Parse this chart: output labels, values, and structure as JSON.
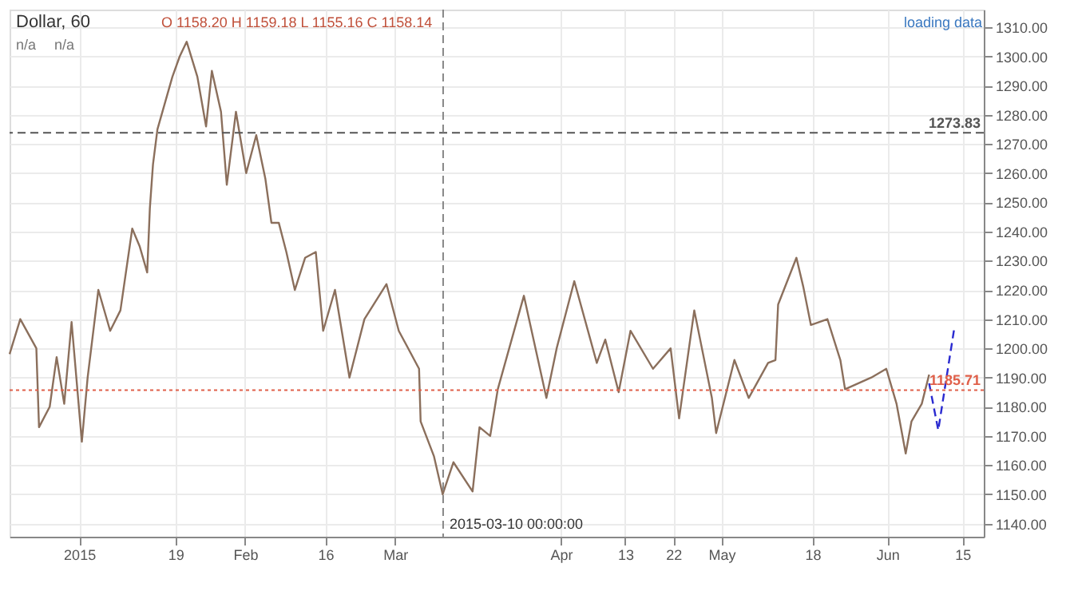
{
  "chart_data": {
    "type": "line",
    "title": "Dollar, 60",
    "annotations": [
      "O 1158.20 H 1159.18 L 1155.16 C 1158.14",
      "n/a",
      "n/a",
      "loading data"
    ],
    "series": [
      {
        "color": "#8b6f5c",
        "line_style": "solid",
        "x": [
          "2014-12-19",
          "2014-12-21",
          "2014-12-24",
          "2014-12-24T12:00",
          "2014-12-26T12:00",
          "2014-12-27T19:00",
          "2014-12-29T05:00",
          "2014-12-30T14:00",
          "2015-01-01T12:00",
          "2015-01-02T14:00",
          "2015-01-04T14:00",
          "2015-01-06T19:00",
          "2015-01-08T17:00",
          "2015-01-10T22:00",
          "2015-01-12T07:00",
          "2015-01-13T17:00",
          "2015-01-14T05:00",
          "2015-01-14T19:00",
          "2015-01-15T15:00",
          "2015-01-18T10:00",
          "2015-01-19T19:00",
          "2015-01-21T02:00",
          "2015-01-23T02:00",
          "2015-01-24T17:00",
          "2015-01-25T19:00",
          "2015-01-27T12:00",
          "2015-01-28T14:00",
          "2015-01-30T07:00",
          "2015-02-01T05:00",
          "2015-02-03T02:00",
          "2015-02-04T19:00",
          "2015-02-05T22:00",
          "2015-02-07T07:00",
          "2015-02-08T17:00",
          "2015-02-10T07:00",
          "2015-02-12T05:00",
          "2015-02-14T05:00",
          "2015-02-15T14:00",
          "2015-02-17T19:00",
          "2015-02-20T12:00",
          "2015-02-23T07:00",
          "2015-02-27T10:00",
          "2015-03-01T17:00",
          "2015-03-05T12:00",
          "2015-03-05T19:00",
          "2015-03-08T07:00",
          "2015-03-09T22:00",
          "2015-03-11T22:00",
          "2015-03-15T12:00",
          "2015-03-16T19:00",
          "2015-03-18T19:00",
          "2015-03-20T05:00",
          "2015-03-25T02:00",
          "2015-03-29T07:00",
          "2015-03-31T05:00",
          "2015-04-03T12:00",
          "2015-04-07T17:00",
          "2015-04-09T07:00",
          "2015-04-11T19:00",
          "2015-04-14T00:00",
          "2015-04-18T05:00",
          "2015-04-21T12:00",
          "2015-04-23T02:00",
          "2015-04-25T22:00",
          "2015-04-29T05:00",
          "2015-04-30T00:00",
          "2015-05-03T10:00",
          "2015-05-06T02:00",
          "2015-05-09T17:00",
          "2015-05-11T02:00",
          "2015-05-11T14:00",
          "2015-05-15T00:00",
          "2015-05-16T07:00",
          "2015-05-17T17:00",
          "2015-05-20T19:00",
          "2015-05-23T05:00",
          "2015-05-24T02:00",
          "2015-05-29T00:00",
          "2015-05-31T19:00",
          "2015-06-02T17:00",
          "2015-06-04T10:00",
          "2015-06-05T12:00",
          "2015-06-07T10:00",
          "2015-06-08T19:00"
        ],
        "values": [
          1198,
          1210,
          1200,
          1173,
          1180,
          1197,
          1181,
          1209,
          1168,
          1190,
          1220,
          1206,
          1213,
          1241,
          1235,
          1226,
          1248,
          1263,
          1275,
          1293,
          1300,
          1305,
          1293,
          1276,
          1295,
          1281,
          1256,
          1281,
          1260,
          1273,
          1258,
          1243,
          1243,
          1233,
          1220,
          1231,
          1233,
          1206,
          1220,
          1190,
          1210,
          1222,
          1206,
          1193,
          1175,
          1163,
          1150,
          1161,
          1151,
          1173,
          1170,
          1186,
          1218,
          1183,
          1200,
          1223,
          1195,
          1203,
          1185,
          1206,
          1193,
          1200,
          1176,
          1213,
          1183,
          1171,
          1196,
          1183,
          1195,
          1196,
          1215,
          1231,
          1221,
          1208,
          1210,
          1196,
          1186,
          1190,
          1193,
          1181,
          1164,
          1175,
          1181,
          1191
        ]
      },
      {
        "color": "#2a2ad0",
        "line_style": "dashed",
        "x": [
          "2015-06-08T19:00",
          "2015-06-10T12:00",
          "2015-06-13T12:00"
        ],
        "values": [
          1188,
          1172,
          1207
        ]
      }
    ],
    "xlim": [
      "2014-12-19",
      "2015-06-19"
    ],
    "xticks": [
      {
        "value": "2015-01-01",
        "label": "2015"
      },
      {
        "value": "2015-01-19",
        "label": "19"
      },
      {
        "value": "2015-02-01",
        "label": "Feb"
      },
      {
        "value": "2015-02-16",
        "label": "16"
      },
      {
        "value": "2015-03-01",
        "label": "Mar"
      },
      {
        "value": "2015-04-01",
        "label": "Apr"
      },
      {
        "value": "2015-04-13",
        "label": "13"
      },
      {
        "value": "2015-04-22",
        "label": "22"
      },
      {
        "value": "2015-05-01",
        "label": "May"
      },
      {
        "value": "2015-05-18",
        "label": "18"
      },
      {
        "value": "2015-06-01",
        "label": "Jun"
      },
      {
        "value": "2015-06-15",
        "label": "15"
      }
    ],
    "ylim": [
      1135.5,
      1316
    ],
    "yticks": [
      {
        "value": 1140,
        "label": "1140.00"
      },
      {
        "value": 1150,
        "label": "1150.00"
      },
      {
        "value": 1160,
        "label": "1160.00"
      },
      {
        "value": 1170,
        "label": "1170.00"
      },
      {
        "value": 1180,
        "label": "1180.00"
      },
      {
        "value": 1190,
        "label": "1190.00"
      },
      {
        "value": 1200,
        "label": "1200.00"
      },
      {
        "value": 1210,
        "label": "1210.00"
      },
      {
        "value": 1220,
        "label": "1220.00"
      },
      {
        "value": 1230,
        "label": "1230.00"
      },
      {
        "value": 1240,
        "label": "1240.00"
      },
      {
        "value": 1250,
        "label": "1250.00"
      },
      {
        "value": 1260,
        "label": "1260.00"
      },
      {
        "value": 1270,
        "label": "1270.00"
      },
      {
        "value": 1280,
        "label": "1280.00"
      },
      {
        "value": 1290,
        "label": "1290.00"
      },
      {
        "value": 1300,
        "label": "1300.00"
      },
      {
        "value": 1310,
        "label": "1310.00"
      }
    ],
    "ref_lines": [
      {
        "axis": "y",
        "value": 1273.83,
        "label": "1273.83",
        "color": "#555555",
        "line_style": "dashed"
      },
      {
        "axis": "y",
        "value": 1185.71,
        "label": "1185.71",
        "color": "#e0604a",
        "line_style": "dotted"
      },
      {
        "axis": "x",
        "value": "2015-03-10",
        "label": "2015-03-10 00:00:00",
        "color": "#888888",
        "line_style": "dashed"
      }
    ],
    "grid": true,
    "marker": "none"
  }
}
